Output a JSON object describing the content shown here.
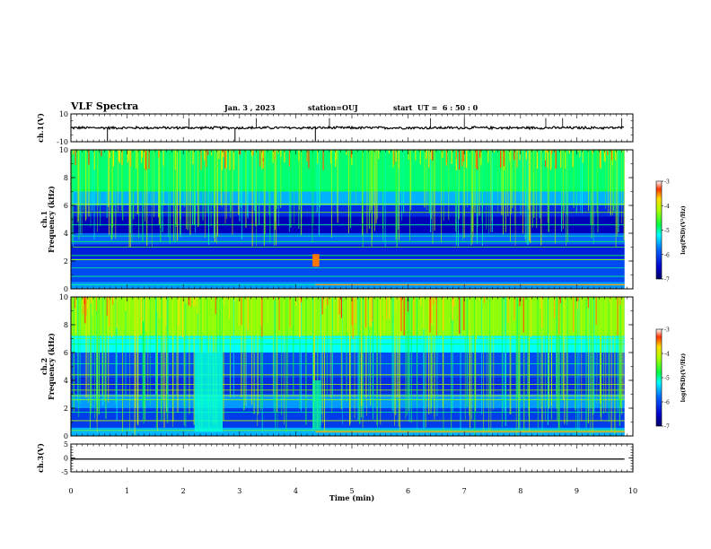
{
  "header": {
    "title": "VLF Spectra",
    "date": "Jan. 3 , 2023",
    "station": "station=OUJ",
    "start": "start  UT =  6 : 50 : 0"
  },
  "chart_data": [
    {
      "type": "line",
      "panel": "ch1-waveform",
      "ylabel": "ch.1(V)",
      "ylim": [
        -10,
        10
      ],
      "yticks": [
        10,
        -10
      ],
      "xlim": [
        0,
        10
      ],
      "description_values": {
        "baseline": 0,
        "noise_band": [
          -1,
          1
        ],
        "spikes_min": [
          0.65,
          2.92,
          4.35
        ],
        "spikes_max": [
          2.1,
          3.3,
          4.6,
          6.4,
          7.0,
          8.45,
          8.75,
          9.8
        ]
      }
    },
    {
      "type": "heatmap",
      "panel": "ch1-spectrogram",
      "ylabel": "Frequency (kHz)",
      "channel": "ch.1",
      "ylim": [
        0,
        10
      ],
      "yticks": [
        0,
        2,
        4,
        6,
        8,
        10
      ],
      "xlim": [
        0,
        10
      ],
      "data_end_min": 9.85,
      "clim": [
        -7,
        -3
      ],
      "colorbar_label": "log(PSD)(V²/Hz)",
      "colorbar_ticks": [
        -3,
        -4,
        -5,
        -6,
        -7
      ],
      "bands": [
        {
          "fmin": 0.0,
          "fmax": 0.5,
          "level": -5.6
        },
        {
          "fmin": 0.5,
          "fmax": 2.2,
          "level": -6.0
        },
        {
          "fmin": 2.2,
          "fmax": 3.2,
          "level": -6.3
        },
        {
          "fmin": 3.2,
          "fmax": 4.0,
          "level": -5.8
        },
        {
          "fmin": 4.0,
          "fmax": 5.2,
          "level": -6.6
        },
        {
          "fmin": 5.2,
          "fmax": 6.0,
          "level": -6.2
        },
        {
          "fmin": 6.0,
          "fmax": 7.0,
          "level": -5.5
        },
        {
          "fmin": 7.0,
          "fmax": 10.0,
          "level": -4.9
        }
      ],
      "lines_khz": [
        0.3,
        0.9,
        1.5,
        2.1,
        2.4,
        3.0,
        3.4,
        3.8,
        4.6,
        5.5,
        6.1,
        7.1
      ]
    },
    {
      "type": "heatmap",
      "panel": "ch2-spectrogram",
      "ylabel": "Frequency (kHz)",
      "channel": "ch.2",
      "ylim": [
        0,
        10
      ],
      "yticks": [
        0,
        2,
        4,
        6,
        8,
        10
      ],
      "xlim": [
        0,
        10
      ],
      "data_end_min": 9.85,
      "clim": [
        -7,
        -3
      ],
      "colorbar_label": "log(PSD)(V²/Hz)",
      "colorbar_ticks": [
        -3,
        -4,
        -5,
        -6,
        -7
      ],
      "bands": [
        {
          "fmin": 0.0,
          "fmax": 0.6,
          "level": -5.5
        },
        {
          "fmin": 0.6,
          "fmax": 2.0,
          "level": -6.1
        },
        {
          "fmin": 2.0,
          "fmax": 3.0,
          "level": -5.6
        },
        {
          "fmin": 3.0,
          "fmax": 4.2,
          "level": -6.2
        },
        {
          "fmin": 4.2,
          "fmax": 6.0,
          "level": -6.0
        },
        {
          "fmin": 6.0,
          "fmax": 7.2,
          "level": -5.2
        },
        {
          "fmin": 7.2,
          "fmax": 10.0,
          "level": -4.3
        }
      ],
      "lines_khz": [
        0.4,
        1.1,
        1.7,
        2.6,
        2.9,
        3.3,
        3.7,
        4.4,
        5.2,
        6.6,
        7.0
      ]
    },
    {
      "type": "line",
      "panel": "ch3-waveform",
      "ylabel": "ch.3(V)",
      "ylim": [
        -5,
        5
      ],
      "yticks": [
        5,
        0,
        -5
      ],
      "xlim": [
        0,
        10
      ],
      "xlabel": "Time (min)",
      "xticks": [
        0,
        1,
        2,
        3,
        4,
        5,
        6,
        7,
        8,
        9,
        10
      ],
      "x": [
        0,
        9.85
      ],
      "y": [
        -0.4,
        -0.4
      ]
    }
  ]
}
